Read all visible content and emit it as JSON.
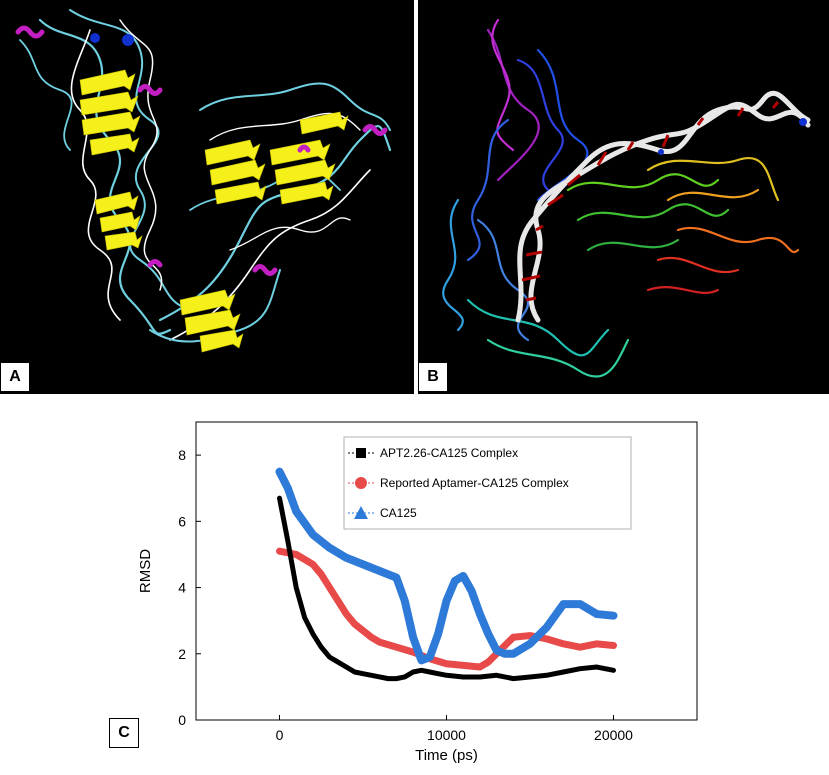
{
  "panels": {
    "a": {
      "label": "A"
    },
    "b": {
      "label": "B"
    },
    "c": {
      "label": "C"
    }
  },
  "colors": {
    "sheet": "#f5ef1a",
    "coil_cyan": "#6fd0e0",
    "coil_white": "#ffffff",
    "helix_magenta": "#c21ec2",
    "blue_atom": "#1030d0",
    "dna_white": "#e8e8e8",
    "dna_red": "#b00000"
  },
  "chart_data": {
    "type": "line",
    "xlabel": "Time (ps)",
    "ylabel": "RMSD",
    "xlim": [
      -5000,
      25000
    ],
    "ylim": [
      0,
      9
    ],
    "xticks": [
      0,
      10000,
      20000
    ],
    "yticks": [
      0,
      2,
      4,
      6,
      8
    ],
    "legend_position": "top-right",
    "series": [
      {
        "name": "APT2.26-CA125 Complex",
        "color": "#000000",
        "marker": "square",
        "x": [
          0,
          500,
          1000,
          1500,
          2000,
          2500,
          3000,
          3500,
          4000,
          4500,
          5000,
          5500,
          6000,
          6500,
          7000,
          7500,
          8000,
          8500,
          9000,
          9500,
          10000,
          11000,
          12000,
          13000,
          14000,
          15000,
          16000,
          17000,
          18000,
          19000,
          20000
        ],
        "y": [
          6.7,
          5.4,
          4.0,
          3.1,
          2.6,
          2.2,
          1.9,
          1.75,
          1.6,
          1.45,
          1.4,
          1.35,
          1.3,
          1.25,
          1.25,
          1.3,
          1.45,
          1.5,
          1.45,
          1.4,
          1.35,
          1.3,
          1.3,
          1.35,
          1.25,
          1.3,
          1.35,
          1.45,
          1.55,
          1.6,
          1.5
        ]
      },
      {
        "name": "Reported Aptamer-CA125 Complex",
        "color": "#e84a4a",
        "marker": "circle",
        "x": [
          0,
          1000,
          2000,
          2500,
          3000,
          3500,
          4000,
          4500,
          5000,
          5500,
          6000,
          7000,
          8000,
          9000,
          10000,
          11000,
          12000,
          12500,
          13000,
          13500,
          14000,
          15000,
          16000,
          17000,
          18000,
          19000,
          20000
        ],
        "y": [
          5.1,
          5.0,
          4.7,
          4.4,
          4.0,
          3.6,
          3.2,
          2.9,
          2.7,
          2.5,
          2.35,
          2.2,
          2.05,
          1.85,
          1.7,
          1.65,
          1.6,
          1.75,
          2.0,
          2.25,
          2.5,
          2.55,
          2.45,
          2.3,
          2.2,
          2.3,
          2.25
        ]
      },
      {
        "name": "CA125",
        "color": "#2e7ad8",
        "marker": "triangle",
        "x": [
          0,
          500,
          1000,
          2000,
          3000,
          4000,
          5000,
          6000,
          7000,
          7500,
          8000,
          8500,
          9000,
          9500,
          10000,
          10500,
          11000,
          11500,
          12000,
          12500,
          13000,
          13500,
          14000,
          15000,
          16000,
          17000,
          18000,
          19000,
          20000
        ],
        "y": [
          7.5,
          7.0,
          6.3,
          5.6,
          5.2,
          4.9,
          4.7,
          4.5,
          4.3,
          3.6,
          2.5,
          1.8,
          1.9,
          2.6,
          3.6,
          4.2,
          4.35,
          3.9,
          3.2,
          2.6,
          2.1,
          2.0,
          2.0,
          2.3,
          2.8,
          3.5,
          3.5,
          3.2,
          3.15
        ]
      }
    ]
  }
}
